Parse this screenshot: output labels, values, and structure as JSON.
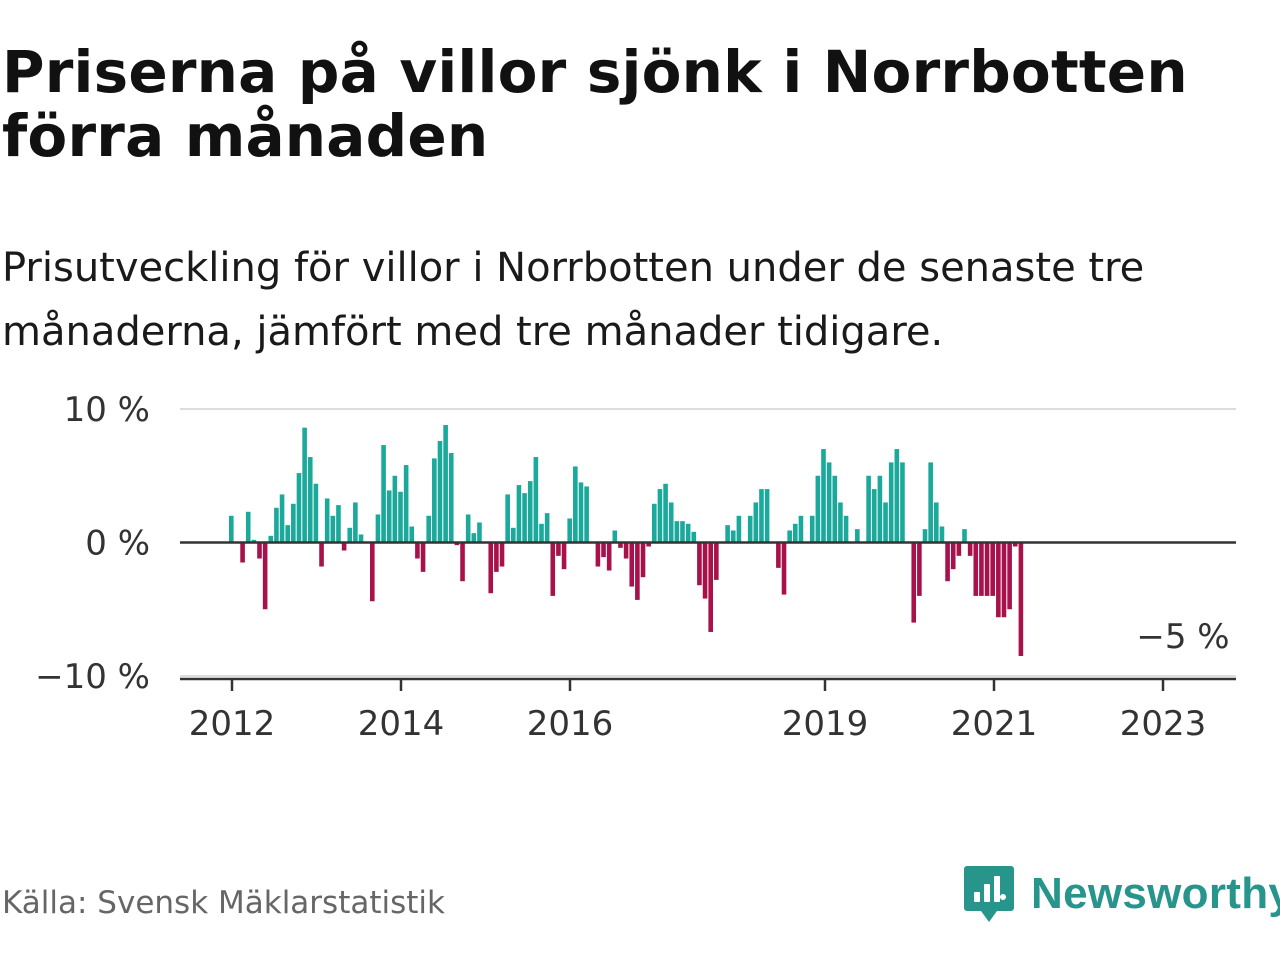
{
  "title": "Priserna på villor sjönk i Norrbotten förra månaden",
  "subtitle": "Prisutveckling för villor i Norrbotten under de senaste tre månaderna, jämfört med tre månader tidigare.",
  "source": "Källa: Svensk Mäklarstatistik",
  "brand": {
    "name": "Newsworthy",
    "icon": "newsworthy-logo-icon"
  },
  "colors": {
    "positive": "#1aa99b",
    "negative": "#a8114a",
    "zero_line": "#333333",
    "grid": "#dddddd"
  },
  "chart_data": {
    "type": "bar",
    "ylim": [
      -10,
      10
    ],
    "y_ticks": [
      {
        "value": 10,
        "label": "10 %"
      },
      {
        "value": 0,
        "label": "0 %"
      },
      {
        "value": -10,
        "label": "−10 %"
      }
    ],
    "x_ticks": [
      "2012",
      "2014",
      "2016",
      "2019",
      "2021",
      "2023"
    ],
    "annotation": {
      "label": "−5 %",
      "value": -5
    },
    "grid": true,
    "legend": "none",
    "series": [
      {
        "values": [
          2.0,
          0.0,
          -1.5,
          2.3,
          0.2,
          -1.2,
          -5.0,
          0.5,
          2.6,
          3.6,
          1.3,
          2.9,
          5.2,
          8.6,
          6.4,
          4.4,
          -1.8,
          3.3,
          2.0,
          2.8,
          -0.6,
          1.1,
          3.0,
          0.6,
          0.0,
          -4.4,
          2.1,
          7.3,
          3.9,
          5.0,
          3.8,
          5.8,
          1.2,
          -1.2,
          -2.2,
          2.0,
          6.3,
          7.6,
          8.8,
          6.7,
          -0.2,
          -2.9,
          2.1,
          0.7,
          1.5,
          0.0,
          -3.8,
          -2.2,
          -1.8,
          3.6,
          1.1,
          4.3,
          3.7,
          4.6,
          6.4,
          1.4,
          2.2,
          -4.0,
          -1.0,
          -2.0,
          1.8,
          5.7,
          4.5,
          4.2,
          0.0,
          -1.8,
          -1.1,
          -2.1,
          0.9,
          -0.4,
          -1.2,
          -3.3,
          -4.3,
          -2.6,
          -0.3,
          2.9,
          4.0,
          4.4,
          3.0,
          1.6,
          1.6,
          1.4,
          0.8,
          -3.2,
          -4.2,
          -6.7,
          -2.8,
          0.0,
          1.3,
          0.9,
          2.0,
          0.0,
          2.0,
          3.0,
          4.0,
          4.0,
          0.0,
          -1.9,
          -3.9,
          0.9,
          1.4,
          2.0,
          0.0,
          2.0,
          5.0,
          7.0,
          6.0,
          5.0,
          3.0,
          2.0,
          0.0,
          1.0,
          0.0,
          5.0,
          4.0,
          5.0,
          3.0,
          6.0,
          7.0,
          6.0,
          0.0,
          -6.0,
          -4.0,
          1.0,
          6.0,
          3.0,
          1.2,
          -2.9,
          -2.0,
          -1.0,
          1.0,
          -1.0,
          -4.0,
          -4.0,
          -4.0,
          -4.0,
          -5.6,
          -5.6,
          -5.0,
          -0.3,
          -8.5
        ]
      }
    ]
  }
}
